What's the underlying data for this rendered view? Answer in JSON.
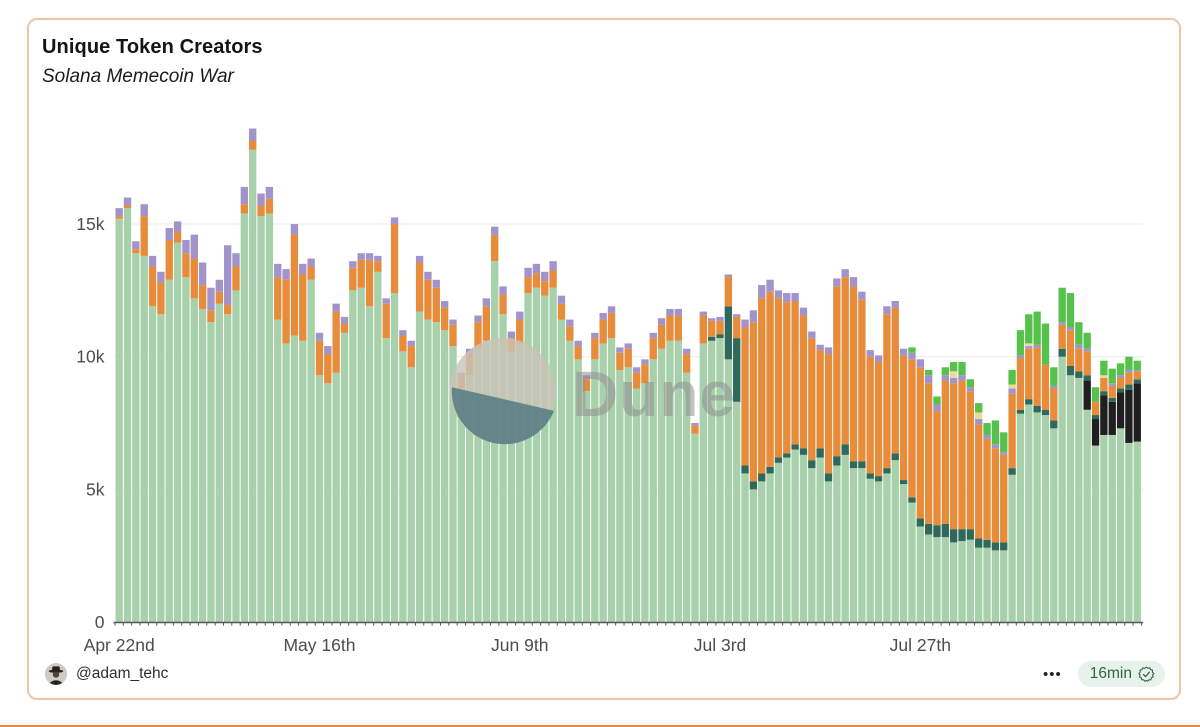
{
  "card": {
    "title": "Unique Token Creators",
    "subtitle": "Solana Memecoin War"
  },
  "watermark": {
    "text": "Dune"
  },
  "footer": {
    "author": "@adam_tehc",
    "menu_label": "•••",
    "refresh_label": "16min"
  },
  "chart_data": {
    "type": "bar",
    "stacked": true,
    "title": "Unique Token Creators",
    "subtitle": "Solana Memecoin War",
    "xlabel": "",
    "ylabel": "",
    "unit": "thousands of unique token creators per day",
    "grid": "horizontal",
    "legend": "none visible",
    "y_ticks": [
      "0",
      "5k",
      "10k",
      "15k"
    ],
    "y_tick_values": [
      0,
      5000,
      10000,
      15000
    ],
    "ylim": [
      0,
      19000
    ],
    "x_tick_labels": [
      "Apr 22nd",
      "May 16th",
      "Jun 9th",
      "Jul 3rd",
      "Jul 27th"
    ],
    "x_tick_day_index": [
      0,
      24,
      48,
      72,
      96
    ],
    "series_order": [
      "light_green",
      "black",
      "dark_teal",
      "orange",
      "purple",
      "cream",
      "bright_green"
    ],
    "colors": {
      "series": {
        "light_green": "#a8d1ab",
        "black": "#1f1f1f",
        "dark_teal": "#2e695c",
        "orange": "#e78c3b",
        "purple": "#a294ca",
        "cream": "#ecd9a0",
        "bright_green": "#56c24c"
      },
      "grid": "#ebebeb",
      "axis_text": "#4d4d4d",
      "baseline": "#555555"
    },
    "bars_note": "123 daily stacked bars, values in thousands, order [light_green, black, dark_teal, orange, purple, cream, bright_green]",
    "bars": [
      [
        15.2,
        0,
        0,
        0.1,
        0.3,
        0,
        0
      ],
      [
        15.6,
        0,
        0,
        0.1,
        0.3,
        0,
        0
      ],
      [
        13.9,
        0,
        0,
        0.15,
        0.3,
        0,
        0
      ],
      [
        13.8,
        0,
        0,
        1.5,
        0.45,
        0,
        0
      ],
      [
        11.9,
        0,
        0,
        1.5,
        0.4,
        0,
        0
      ],
      [
        11.6,
        0,
        0,
        1.2,
        0.4,
        0,
        0
      ],
      [
        12.9,
        0,
        0,
        1.5,
        0.45,
        0,
        0
      ],
      [
        14.3,
        0,
        0,
        0.4,
        0.4,
        0,
        0
      ],
      [
        13.0,
        0,
        0,
        0.9,
        0.5,
        0,
        0
      ],
      [
        12.2,
        0,
        0,
        1.5,
        0.9,
        0,
        0
      ],
      [
        11.8,
        0,
        0,
        0.9,
        0.85,
        0,
        0
      ],
      [
        11.3,
        0,
        0,
        0.45,
        0.85,
        0,
        0
      ],
      [
        12.0,
        0,
        0,
        0.45,
        0.45,
        0,
        0
      ],
      [
        11.6,
        0,
        0,
        0.35,
        2.25,
        0,
        0
      ],
      [
        12.5,
        0,
        0,
        0.9,
        0.5,
        0,
        0
      ],
      [
        15.4,
        0,
        0,
        0.35,
        0.65,
        0,
        0
      ],
      [
        17.8,
        0,
        0,
        0.35,
        0.45,
        0,
        0
      ],
      [
        15.3,
        0,
        0,
        0.4,
        0.45,
        0,
        0
      ],
      [
        15.4,
        0,
        0,
        0.55,
        0.45,
        0,
        0
      ],
      [
        11.4,
        0,
        0,
        1.6,
        0.5,
        0,
        0
      ],
      [
        10.5,
        0,
        0,
        2.4,
        0.4,
        0,
        0
      ],
      [
        10.8,
        0,
        0,
        3.8,
        0.4,
        0,
        0
      ],
      [
        10.6,
        0,
        0,
        2.5,
        0.4,
        0,
        0
      ],
      [
        12.9,
        0,
        0,
        0.5,
        0.3,
        0,
        0
      ],
      [
        9.3,
        0,
        0,
        1.3,
        0.3,
        0,
        0
      ],
      [
        9.0,
        0,
        0,
        1.1,
        0.3,
        0,
        0
      ],
      [
        9.4,
        0,
        0,
        2.3,
        0.3,
        0,
        0
      ],
      [
        10.9,
        0,
        0,
        0.35,
        0.25,
        0,
        0
      ],
      [
        12.5,
        0,
        0,
        0.85,
        0.25,
        0,
        0
      ],
      [
        12.6,
        0,
        0,
        1.05,
        0.25,
        0,
        0
      ],
      [
        11.9,
        0,
        0,
        1.75,
        0.25,
        0,
        0
      ],
      [
        13.2,
        0,
        0,
        0.4,
        0.2,
        0,
        0
      ],
      [
        10.7,
        0,
        0,
        1.3,
        0.2,
        0,
        0
      ],
      [
        12.4,
        0,
        0,
        2.6,
        0.25,
        0,
        0
      ],
      [
        10.2,
        0,
        0,
        0.6,
        0.2,
        0,
        0
      ],
      [
        9.6,
        0,
        0,
        0.8,
        0.2,
        0,
        0
      ],
      [
        11.7,
        0,
        0,
        1.85,
        0.25,
        0,
        0
      ],
      [
        11.4,
        0,
        0,
        1.5,
        0.3,
        0,
        0
      ],
      [
        11.3,
        0,
        0,
        1.3,
        0.3,
        0,
        0
      ],
      [
        11.0,
        0,
        0,
        0.85,
        0.25,
        0,
        0
      ],
      [
        10.4,
        0,
        0,
        0.8,
        0.2,
        0,
        0
      ],
      [
        8.8,
        0,
        0,
        0.45,
        0.15,
        0,
        0
      ],
      [
        9.3,
        0,
        0,
        0.8,
        0.2,
        0,
        0
      ],
      [
        10.3,
        0,
        0,
        1.0,
        0.25,
        0,
        0
      ],
      [
        10.6,
        0,
        0,
        1.3,
        0.3,
        0,
        0
      ],
      [
        13.6,
        0,
        0,
        1.0,
        0.3,
        0,
        0
      ],
      [
        11.6,
        0,
        0,
        0.75,
        0.3,
        0,
        0
      ],
      [
        10.2,
        0,
        0,
        0.5,
        0.25,
        0,
        0
      ],
      [
        10.5,
        0,
        0,
        0.9,
        0.3,
        0,
        0
      ],
      [
        12.4,
        0,
        0,
        0.6,
        0.35,
        0,
        0
      ],
      [
        12.6,
        0,
        0,
        0.55,
        0.35,
        0,
        0
      ],
      [
        12.3,
        0,
        0,
        0.55,
        0.35,
        0,
        0
      ],
      [
        12.6,
        0,
        0,
        0.65,
        0.35,
        0,
        0
      ],
      [
        11.4,
        0,
        0,
        0.6,
        0.3,
        0,
        0
      ],
      [
        10.6,
        0,
        0,
        0.55,
        0.25,
        0,
        0
      ],
      [
        9.9,
        0,
        0,
        0.5,
        0.2,
        0,
        0
      ],
      [
        8.7,
        0,
        0,
        0.45,
        0.15,
        0,
        0
      ],
      [
        9.9,
        0,
        0,
        0.8,
        0.2,
        0,
        0
      ],
      [
        10.5,
        0,
        0,
        0.9,
        0.25,
        0,
        0
      ],
      [
        10.7,
        0,
        0,
        0.95,
        0.25,
        0,
        0
      ],
      [
        9.5,
        0,
        0,
        0.65,
        0.2,
        0,
        0
      ],
      [
        9.6,
        0,
        0,
        0.7,
        0.2,
        0,
        0
      ],
      [
        8.8,
        0,
        0,
        0.6,
        0.2,
        0,
        0
      ],
      [
        9.0,
        0,
        0,
        0.7,
        0.2,
        0,
        0
      ],
      [
        9.9,
        0,
        0,
        0.8,
        0.2,
        0,
        0
      ],
      [
        10.3,
        0,
        0,
        0.9,
        0.25,
        0,
        0
      ],
      [
        10.6,
        0,
        0,
        0.95,
        0.25,
        0,
        0
      ],
      [
        10.6,
        0,
        0,
        0.95,
        0.25,
        0,
        0
      ],
      [
        9.4,
        0,
        0,
        0.7,
        0.2,
        0,
        0
      ],
      [
        7.1,
        0,
        0,
        0.3,
        0.1,
        0,
        0
      ],
      [
        10.5,
        0,
        0,
        1.05,
        0.15,
        0,
        0
      ],
      [
        10.6,
        0,
        0.15,
        0.6,
        0.1,
        0,
        0
      ],
      [
        10.7,
        0,
        0.15,
        0.5,
        0.15,
        0,
        0
      ],
      [
        9.9,
        0,
        2.0,
        1.1,
        0.1,
        0,
        0
      ],
      [
        8.3,
        0,
        2.4,
        0.8,
        0.1,
        0,
        0
      ],
      [
        5.6,
        0,
        0.3,
        5.2,
        0.3,
        0,
        0
      ],
      [
        5.0,
        0,
        0.3,
        6.0,
        0.45,
        0,
        0
      ],
      [
        5.3,
        0,
        0.3,
        6.6,
        0.5,
        0,
        0
      ],
      [
        5.6,
        0,
        0.25,
        6.6,
        0.45,
        0,
        0
      ],
      [
        6.0,
        0,
        0.2,
        6.0,
        0.3,
        0,
        0
      ],
      [
        6.2,
        0,
        0.15,
        5.7,
        0.35,
        0,
        0
      ],
      [
        6.5,
        0,
        0.2,
        5.4,
        0.3,
        0,
        0
      ],
      [
        6.3,
        0,
        0.25,
        5.0,
        0.3,
        0,
        0
      ],
      [
        5.8,
        0,
        0.3,
        4.6,
        0.25,
        0,
        0
      ],
      [
        6.2,
        0,
        0.35,
        3.7,
        0.2,
        0,
        0
      ],
      [
        5.3,
        0,
        0.3,
        4.5,
        0.25,
        0,
        0
      ],
      [
        5.9,
        0,
        0.35,
        6.4,
        0.3,
        0,
        0
      ],
      [
        6.3,
        0,
        0.4,
        6.3,
        0.3,
        0,
        0
      ],
      [
        5.8,
        0,
        0.25,
        6.6,
        0.35,
        0,
        0
      ],
      [
        5.8,
        0,
        0.25,
        6.1,
        0.3,
        0,
        0
      ],
      [
        5.4,
        0,
        0.2,
        4.4,
        0.25,
        0,
        0
      ],
      [
        5.3,
        0,
        0.2,
        4.3,
        0.25,
        0,
        0
      ],
      [
        5.6,
        0,
        0.2,
        5.8,
        0.3,
        0,
        0
      ],
      [
        6.1,
        0,
        0.25,
        5.5,
        0.25,
        0,
        0
      ],
      [
        5.2,
        0,
        0.15,
        4.7,
        0.25,
        0,
        0
      ],
      [
        4.5,
        0,
        0.2,
        5.2,
        0.25,
        0,
        0.2
      ],
      [
        3.6,
        0,
        0.3,
        5.7,
        0.3,
        0,
        0
      ],
      [
        3.3,
        0,
        0.4,
        5.3,
        0.3,
        0,
        0.2
      ],
      [
        3.2,
        0,
        0.45,
        4.3,
        0.25,
        0,
        0.3
      ],
      [
        3.2,
        0,
        0.5,
        5.4,
        0.2,
        0,
        0.3
      ],
      [
        3.0,
        0,
        0.5,
        5.5,
        0.2,
        0.25,
        0.35
      ],
      [
        3.05,
        0,
        0.45,
        5.6,
        0.2,
        0,
        0.5
      ],
      [
        3.1,
        0,
        0.4,
        5.2,
        0.15,
        0,
        0.3
      ],
      [
        2.8,
        0,
        0.35,
        4.3,
        0.2,
        0.25,
        0.35
      ],
      [
        2.8,
        0,
        0.3,
        3.8,
        0.15,
        0,
        0.45
      ],
      [
        2.7,
        0,
        0.3,
        3.55,
        0.15,
        0,
        0.9
      ],
      [
        2.7,
        0,
        0.3,
        3.3,
        0.1,
        0,
        0.75
      ],
      [
        5.55,
        0,
        0.25,
        2.8,
        0.2,
        0.15,
        0.55
      ],
      [
        7.85,
        0,
        0.15,
        1.95,
        0.1,
        0,
        0.95
      ],
      [
        8.2,
        0,
        0.2,
        1.9,
        0.1,
        0.1,
        1.1
      ],
      [
        7.9,
        0,
        0.25,
        2.2,
        0.1,
        0,
        1.25
      ],
      [
        7.8,
        0,
        0.2,
        1.7,
        0,
        0,
        1.55
      ],
      [
        7.3,
        0,
        0.3,
        1.2,
        0.1,
        0,
        0.7
      ],
      [
        10.0,
        0,
        0.3,
        0.9,
        0.1,
        0,
        1.3
      ],
      [
        9.3,
        0,
        0.35,
        1.35,
        0.1,
        0,
        1.3
      ],
      [
        9.2,
        0,
        0.25,
        0.85,
        0.15,
        0,
        0.85
      ],
      [
        8.0,
        1.1,
        0.2,
        0.9,
        0.1,
        0,
        0.6
      ],
      [
        6.65,
        1.0,
        0.15,
        0.5,
        0,
        0,
        0.55
      ],
      [
        7.05,
        1.5,
        0.15,
        0.5,
        0,
        0.1,
        0.55
      ],
      [
        7.05,
        1.25,
        0.15,
        0.45,
        0.1,
        0,
        0.55
      ],
      [
        7.3,
        1.35,
        0.15,
        0.4,
        0.1,
        0,
        0.45
      ],
      [
        6.75,
        2.0,
        0.2,
        0.45,
        0.1,
        0,
        0.5
      ],
      [
        6.8,
        2.2,
        0.15,
        0.3,
        0.05,
        0,
        0.35
      ]
    ]
  }
}
